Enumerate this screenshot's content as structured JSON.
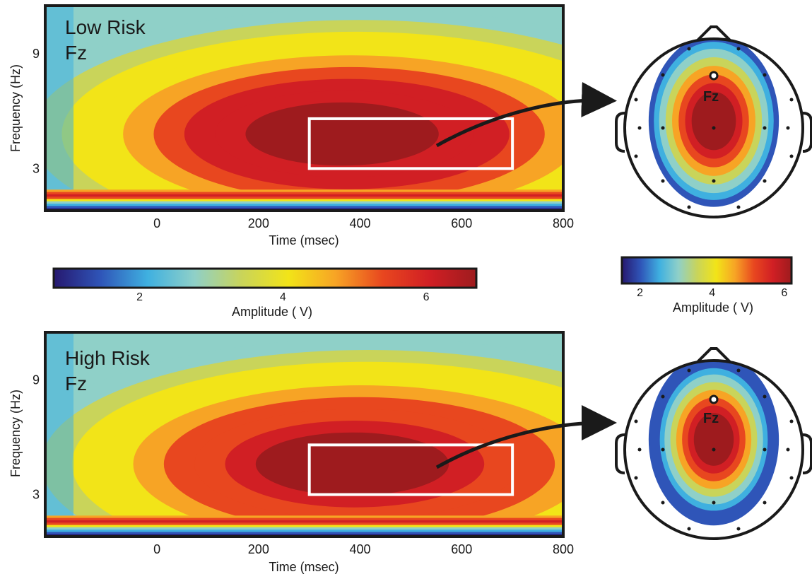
{
  "chart_data": [
    {
      "type": "heatmap",
      "panel_label_line1": "Low Risk",
      "panel_label_line2": "Fz",
      "xlabel": "Time (msec)",
      "ylabel": "Frequency (Hz)",
      "xlim": [
        -220,
        800
      ],
      "ylim": [
        0.8,
        11.5
      ],
      "xticks": [
        0,
        200,
        400,
        600,
        800
      ],
      "yticks": [
        3,
        9
      ],
      "roi": {
        "x": [
          300,
          700
        ],
        "y": [
          3.0,
          5.6
        ]
      },
      "peak": {
        "x": 360,
        "y": 4.8,
        "amplitude": 6.5
      },
      "topomap": {
        "electrode_label": "Fz",
        "centre_amplitude": 6.0,
        "spread": 1.0
      }
    },
    {
      "type": "heatmap",
      "panel_label_line1": "High Risk",
      "panel_label_line2": "Fz",
      "xlabel": "Time (msec)",
      "ylabel": "Frequency (Hz)",
      "xlim": [
        -220,
        800
      ],
      "ylim": [
        0.8,
        11.5
      ],
      "xticks": [
        0,
        200,
        400,
        600,
        800
      ],
      "yticks": [
        3,
        9
      ],
      "roi": {
        "x": [
          300,
          700
        ],
        "y": [
          3.0,
          5.6
        ]
      },
      "peak": {
        "x": 380,
        "y": 4.6,
        "amplitude": 6.2
      },
      "topomap": {
        "electrode_label": "Fz",
        "centre_amplitude": 5.8,
        "spread": 0.78
      }
    }
  ],
  "colorbars": [
    {
      "label": "Amplitude (  V)",
      "ticks": [
        2,
        4,
        6
      ],
      "range": [
        0.8,
        6.7
      ]
    },
    {
      "label": "Amplitude (  V)",
      "ticks": [
        2,
        4,
        6
      ],
      "range": [
        1.5,
        6.2
      ]
    }
  ],
  "colors": {
    "scale": [
      "#26186f",
      "#2f55b8",
      "#3fb0e0",
      "#8fd0c8",
      "#c9d45a",
      "#f2e418",
      "#f7a425",
      "#e8471f",
      "#d11f24",
      "#9e1b1e"
    ],
    "roi_box": "#ffffff",
    "frame": "#1a1a1a"
  }
}
